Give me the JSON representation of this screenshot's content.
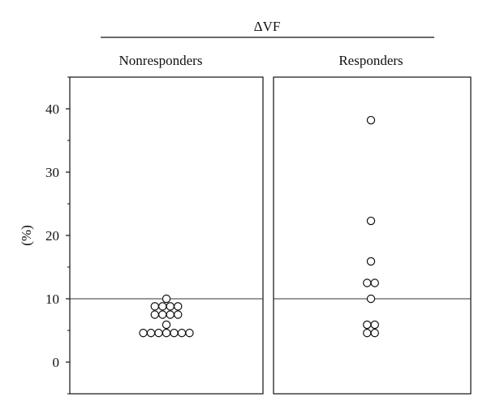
{
  "chart_data": {
    "type": "scatter",
    "title": "ΔVF",
    "ylabel": "(%)",
    "ylim": [
      -5,
      45
    ],
    "yticks": [
      0,
      10,
      20,
      30,
      40
    ],
    "ytick_labels": [
      "0",
      "10",
      "20",
      "30",
      "40"
    ],
    "reference_line": 10,
    "grid": false,
    "panels": [
      {
        "name": "Nonresponders",
        "points": [
          {
            "x": 0,
            "y": 10.0
          },
          {
            "x": -1.5,
            "y": 8.8
          },
          {
            "x": -0.5,
            "y": 8.8
          },
          {
            "x": 0.5,
            "y": 8.8
          },
          {
            "x": 1.5,
            "y": 8.8
          },
          {
            "x": -1.5,
            "y": 7.5
          },
          {
            "x": -0.5,
            "y": 7.5
          },
          {
            "x": 0.5,
            "y": 7.5
          },
          {
            "x": 1.5,
            "y": 7.5
          },
          {
            "x": 0,
            "y": 5.9
          },
          {
            "x": -3,
            "y": 4.6
          },
          {
            "x": -2,
            "y": 4.6
          },
          {
            "x": -1,
            "y": 4.6
          },
          {
            "x": 0,
            "y": 4.6
          },
          {
            "x": 1,
            "y": 4.6
          },
          {
            "x": 2,
            "y": 4.6
          },
          {
            "x": 3,
            "y": 4.6
          }
        ]
      },
      {
        "name": "Responders",
        "points": [
          {
            "x": 0,
            "y": 38.2
          },
          {
            "x": 0,
            "y": 22.3
          },
          {
            "x": 0,
            "y": 15.9
          },
          {
            "x": -0.5,
            "y": 12.5
          },
          {
            "x": 0.5,
            "y": 12.5
          },
          {
            "x": 0,
            "y": 10.0
          },
          {
            "x": -0.5,
            "y": 5.9
          },
          {
            "x": 0.5,
            "y": 5.9
          },
          {
            "x": -0.5,
            "y": 4.6
          },
          {
            "x": 0.5,
            "y": 4.6
          }
        ]
      }
    ]
  }
}
